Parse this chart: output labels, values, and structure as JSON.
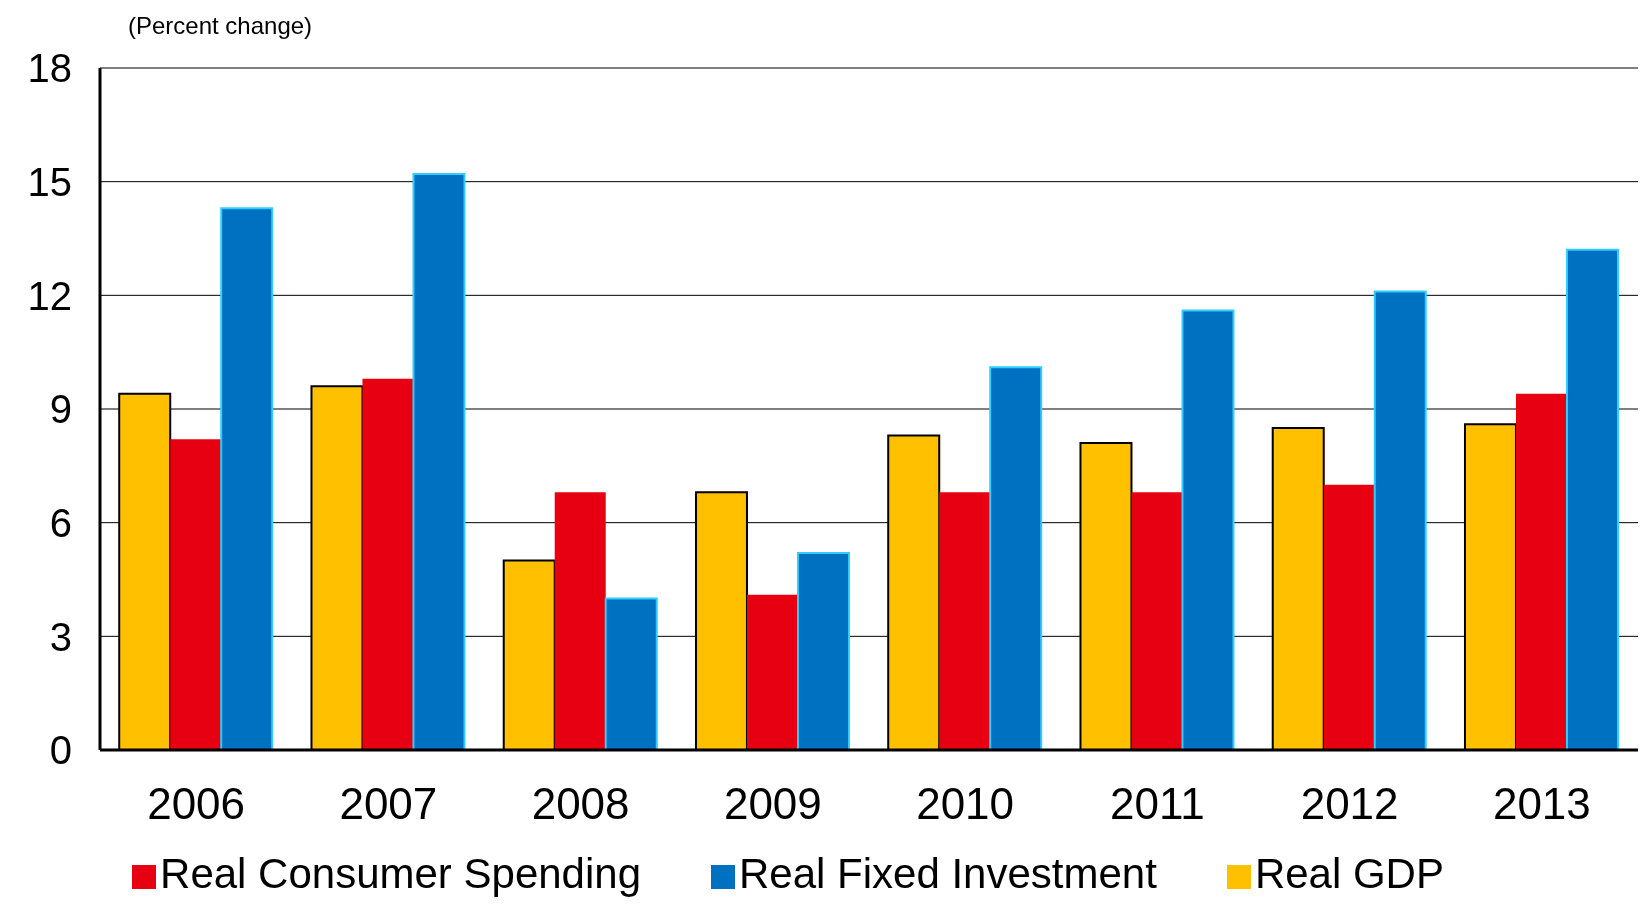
{
  "chart_data": {
    "type": "bar",
    "ylabel": "(Percent change)",
    "categories": [
      "2006",
      "2007",
      "2008",
      "2009",
      "2010",
      "2011",
      "2012",
      "2013"
    ],
    "series": [
      {
        "name": "Real GDP",
        "color": "#ffc000",
        "values": [
          9.4,
          9.6,
          5.0,
          6.8,
          8.3,
          8.1,
          8.5,
          8.6
        ]
      },
      {
        "name": "Real Consumer Spending",
        "color": "#e60012",
        "values": [
          8.2,
          9.8,
          6.8,
          4.1,
          6.8,
          6.8,
          7.0,
          9.4
        ]
      },
      {
        "name": "Real Fixed Investment",
        "color": "#0070c0",
        "values": [
          14.3,
          15.2,
          4.0,
          5.2,
          10.1,
          11.6,
          12.1,
          13.2
        ]
      }
    ],
    "ylim": [
      0,
      18
    ],
    "yticks": [
      0,
      3,
      6,
      9,
      12,
      15,
      18
    ],
    "grid": "y",
    "legend": "bottom"
  }
}
